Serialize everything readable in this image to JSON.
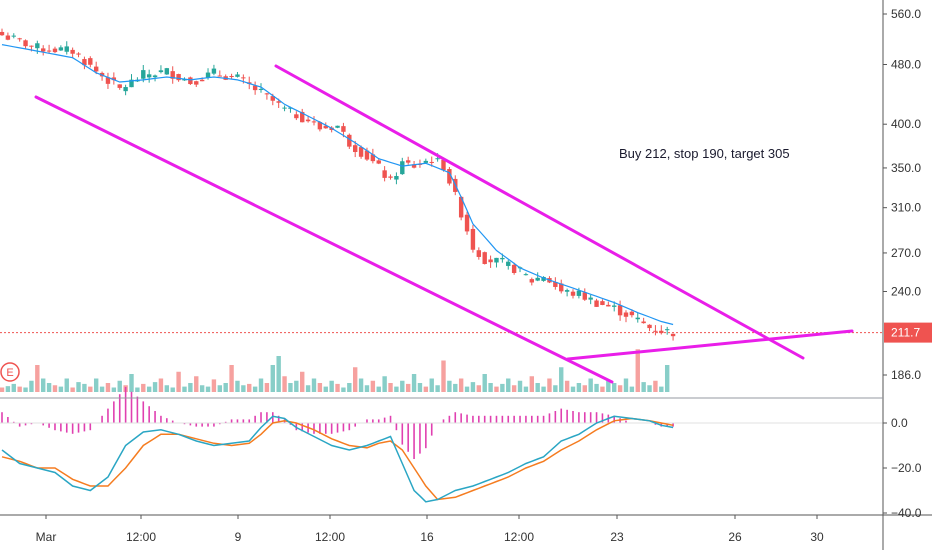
{
  "chart_data": {
    "type": "candlestick",
    "price_axis": {
      "ticks": [
        560,
        480,
        400,
        350,
        310,
        270,
        240,
        186
      ],
      "tick_labels": [
        "560.0",
        "480.0",
        "400.0",
        "350.0",
        "310.0",
        "270.0",
        "240.0",
        "186.0"
      ],
      "scale": "log"
    },
    "macd_axis": {
      "ticks": [
        0,
        -20,
        -40
      ],
      "tick_labels": [
        "0.0",
        "−20.0",
        "−40.0"
      ]
    },
    "time_axis": {
      "labels": [
        "Mar",
        "12:00",
        "9",
        "12:00",
        "16",
        "12:00",
        "23",
        "26",
        "30"
      ]
    },
    "last_price": 211.7,
    "last_price_label": "211.7",
    "annotation": "Buy 212, stop 190, target 305",
    "event_marker": "E",
    "colors": {
      "up": "#26a69a",
      "down": "#ef5350",
      "trendline": "#e91ee9",
      "ma": "#2196f3",
      "macd_line": "#2aa6c4",
      "signal_line": "#f57c20",
      "histogram": "#e040b0",
      "price_line": "#ef5350"
    },
    "price_path": [
      [
        0,
        525
      ],
      [
        6,
        505
      ],
      [
        12,
        500
      ],
      [
        16,
        470
      ],
      [
        20,
        445
      ],
      [
        24,
        465
      ],
      [
        28,
        470
      ],
      [
        32,
        455
      ],
      [
        36,
        468
      ],
      [
        40,
        460
      ],
      [
        44,
        440
      ],
      [
        48,
        418
      ],
      [
        52,
        405
      ],
      [
        54,
        395
      ],
      [
        57,
        398
      ],
      [
        59,
        378
      ],
      [
        62,
        362
      ],
      [
        64,
        350
      ],
      [
        66,
        335
      ],
      [
        68,
        355
      ],
      [
        70,
        352
      ],
      [
        73,
        360
      ],
      [
        75,
        352
      ],
      [
        78,
        305
      ],
      [
        80,
        275
      ],
      [
        82,
        265
      ],
      [
        85,
        262
      ],
      [
        88,
        255
      ],
      [
        90,
        248
      ],
      [
        92,
        252
      ],
      [
        95,
        240
      ],
      [
        98,
        238
      ],
      [
        101,
        232
      ],
      [
        104,
        228
      ],
      [
        107,
        222
      ],
      [
        110,
        215
      ],
      [
        112,
        213
      ],
      [
        114,
        212
      ]
    ],
    "ma_path": [
      [
        0,
        510
      ],
      [
        6,
        500
      ],
      [
        12,
        490
      ],
      [
        16,
        468
      ],
      [
        20,
        455
      ],
      [
        24,
        458
      ],
      [
        28,
        462
      ],
      [
        32,
        458
      ],
      [
        36,
        462
      ],
      [
        40,
        458
      ],
      [
        44,
        448
      ],
      [
        48,
        425
      ],
      [
        52,
        410
      ],
      [
        56,
        395
      ],
      [
        60,
        378
      ],
      [
        64,
        360
      ],
      [
        68,
        352
      ],
      [
        72,
        355
      ],
      [
        76,
        345
      ],
      [
        80,
        295
      ],
      [
        84,
        272
      ],
      [
        88,
        258
      ],
      [
        92,
        250
      ],
      [
        96,
        244
      ],
      [
        100,
        238
      ],
      [
        104,
        232
      ],
      [
        108,
        225
      ],
      [
        112,
        219
      ],
      [
        114,
        217
      ]
    ],
    "volume": [
      0.1,
      0.13,
      0.18,
      0.12,
      0.1,
      0.25,
      0.6,
      0.3,
      0.2,
      0.15,
      0.12,
      0.3,
      0.1,
      0.22,
      0.18,
      0.12,
      0.3,
      0.12,
      0.2,
      0.1,
      0.25,
      0.15,
      0.4,
      0.1,
      0.18,
      0.12,
      0.22,
      0.3,
      0.15,
      0.1,
      0.45,
      0.12,
      0.2,
      0.35,
      0.15,
      0.12,
      0.28,
      0.15,
      0.2,
      0.6,
      0.25,
      0.15,
      0.18,
      0.12,
      0.3,
      0.2,
      0.6,
      0.8,
      0.35,
      0.2,
      0.25,
      0.45,
      0.15,
      0.3,
      0.2,
      0.12,
      0.25,
      0.18,
      0.1,
      0.2,
      0.55,
      0.3,
      0.15,
      0.25,
      0.12,
      0.35,
      0.2,
      0.12,
      0.25,
      0.18,
      0.4,
      0.2,
      0.12,
      0.3,
      0.15,
      0.7,
      0.25,
      0.18,
      0.3,
      0.12,
      0.22,
      0.15,
      0.4,
      0.2,
      0.12,
      0.18,
      0.3,
      0.15,
      0.25,
      0.12,
      0.35,
      0.2,
      0.12,
      0.3,
      0.15,
      0.55,
      0.25,
      0.12,
      0.2,
      0.15,
      0.3,
      0.18,
      0.12,
      0.25,
      0.2,
      0.15,
      0.3,
      0.12,
      0.95,
      0.22,
      0.15,
      0.25,
      0.12,
      0.6
    ],
    "macd_line": [
      [
        0,
        -12
      ],
      [
        3,
        -18
      ],
      [
        6,
        -20
      ],
      [
        9,
        -22
      ],
      [
        12,
        -28
      ],
      [
        15,
        -30
      ],
      [
        18,
        -24
      ],
      [
        21,
        -10
      ],
      [
        24,
        -4
      ],
      [
        27,
        -3
      ],
      [
        30,
        -5
      ],
      [
        33,
        -8
      ],
      [
        36,
        -10
      ],
      [
        39,
        -9
      ],
      [
        42,
        -8
      ],
      [
        44,
        -2
      ],
      [
        46,
        3
      ],
      [
        48,
        2
      ],
      [
        50,
        -2
      ],
      [
        53,
        -6
      ],
      [
        56,
        -10
      ],
      [
        59,
        -12
      ],
      [
        62,
        -10
      ],
      [
        64,
        -8
      ],
      [
        66,
        -6
      ],
      [
        68,
        -18
      ],
      [
        70,
        -30
      ],
      [
        72,
        -35
      ],
      [
        74,
        -34
      ],
      [
        77,
        -30
      ],
      [
        80,
        -28
      ],
      [
        83,
        -25
      ],
      [
        86,
        -22
      ],
      [
        89,
        -18
      ],
      [
        92,
        -15
      ],
      [
        95,
        -8
      ],
      [
        98,
        -5
      ],
      [
        101,
        0
      ],
      [
        104,
        3
      ],
      [
        107,
        2
      ],
      [
        110,
        1
      ],
      [
        112,
        -1
      ],
      [
        114,
        -2
      ]
    ],
    "signal_line": [
      [
        0,
        -15
      ],
      [
        3,
        -17
      ],
      [
        6,
        -20
      ],
      [
        9,
        -20
      ],
      [
        12,
        -25
      ],
      [
        15,
        -28
      ],
      [
        18,
        -28
      ],
      [
        21,
        -20
      ],
      [
        24,
        -10
      ],
      [
        27,
        -5
      ],
      [
        30,
        -5
      ],
      [
        33,
        -7
      ],
      [
        36,
        -9
      ],
      [
        39,
        -10
      ],
      [
        42,
        -9
      ],
      [
        44,
        -5
      ],
      [
        46,
        0
      ],
      [
        48,
        1
      ],
      [
        50,
        0
      ],
      [
        53,
        -3
      ],
      [
        56,
        -7
      ],
      [
        59,
        -10
      ],
      [
        62,
        -11
      ],
      [
        64,
        -9
      ],
      [
        66,
        -8
      ],
      [
        68,
        -12
      ],
      [
        70,
        -20
      ],
      [
        72,
        -28
      ],
      [
        74,
        -34
      ],
      [
        77,
        -33
      ],
      [
        80,
        -30
      ],
      [
        83,
        -27
      ],
      [
        86,
        -24
      ],
      [
        89,
        -20
      ],
      [
        92,
        -17
      ],
      [
        95,
        -12
      ],
      [
        98,
        -8
      ],
      [
        101,
        -3
      ],
      [
        104,
        1
      ],
      [
        107,
        2
      ],
      [
        110,
        1
      ],
      [
        112,
        0
      ],
      [
        114,
        -1
      ]
    ]
  }
}
